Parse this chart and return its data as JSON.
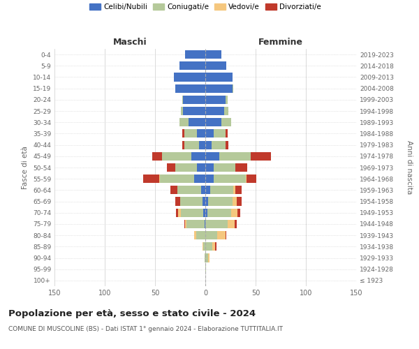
{
  "age_groups": [
    "100+",
    "95-99",
    "90-94",
    "85-89",
    "80-84",
    "75-79",
    "70-74",
    "65-69",
    "60-64",
    "55-59",
    "50-54",
    "45-49",
    "40-44",
    "35-39",
    "30-34",
    "25-29",
    "20-24",
    "15-19",
    "10-14",
    "5-9",
    "0-4"
  ],
  "birth_years": [
    "≤ 1923",
    "1924-1928",
    "1929-1933",
    "1934-1938",
    "1939-1943",
    "1944-1948",
    "1949-1953",
    "1954-1958",
    "1959-1963",
    "1964-1968",
    "1969-1973",
    "1974-1978",
    "1979-1983",
    "1984-1988",
    "1989-1993",
    "1994-1998",
    "1999-2003",
    "2004-2008",
    "2009-2013",
    "2014-2018",
    "2019-2023"
  ],
  "colors": {
    "celibi": "#4472c4",
    "coniugati": "#b5c99a",
    "vedovi": "#f5c77e",
    "divorziati": "#c0392b"
  },
  "maschi": {
    "celibi": [
      0,
      0,
      0,
      0,
      0,
      1,
      2,
      3,
      4,
      11,
      8,
      14,
      6,
      8,
      17,
      22,
      22,
      30,
      31,
      26,
      20
    ],
    "coniugati": [
      0,
      0,
      1,
      2,
      9,
      18,
      22,
      22,
      24,
      34,
      22,
      29,
      15,
      13,
      9,
      2,
      1,
      0,
      0,
      0,
      0
    ],
    "vedovi": [
      0,
      0,
      0,
      1,
      2,
      1,
      3,
      0,
      0,
      1,
      0,
      0,
      0,
      0,
      0,
      0,
      0,
      0,
      0,
      0,
      0
    ],
    "divorziati": [
      0,
      0,
      0,
      0,
      0,
      1,
      2,
      5,
      7,
      16,
      8,
      10,
      2,
      2,
      0,
      0,
      0,
      0,
      0,
      0,
      0
    ]
  },
  "femmine": {
    "celibi": [
      0,
      0,
      0,
      0,
      0,
      0,
      2,
      3,
      5,
      8,
      8,
      14,
      6,
      8,
      16,
      19,
      20,
      27,
      27,
      21,
      16
    ],
    "coniugati": [
      0,
      1,
      3,
      7,
      12,
      22,
      24,
      24,
      23,
      32,
      22,
      31,
      14,
      12,
      10,
      4,
      2,
      1,
      0,
      0,
      0
    ],
    "vedovi": [
      0,
      0,
      1,
      3,
      8,
      7,
      6,
      4,
      2,
      1,
      0,
      0,
      0,
      0,
      0,
      0,
      0,
      0,
      0,
      0,
      0
    ],
    "divorziati": [
      0,
      0,
      0,
      1,
      1,
      2,
      3,
      5,
      6,
      10,
      12,
      20,
      3,
      2,
      0,
      0,
      0,
      0,
      0,
      0,
      0
    ]
  },
  "title": "Popolazione per età, sesso e stato civile - 2024",
  "subtitle": "COMUNE DI MUSCOLINE (BS) - Dati ISTAT 1° gennaio 2024 - Elaborazione TUTTITALIA.IT",
  "xlabel_maschi": "Maschi",
  "xlabel_femmine": "Femmine",
  "ylabel": "Fasce di età",
  "ylabel_right": "Anni di nascita",
  "xlim": 150,
  "legend_labels": [
    "Celibi/Nubili",
    "Coniugati/e",
    "Vedovi/e",
    "Divorziati/e"
  ],
  "background_color": "#ffffff",
  "title_fontsize": 9.5,
  "subtitle_fontsize": 6.5
}
